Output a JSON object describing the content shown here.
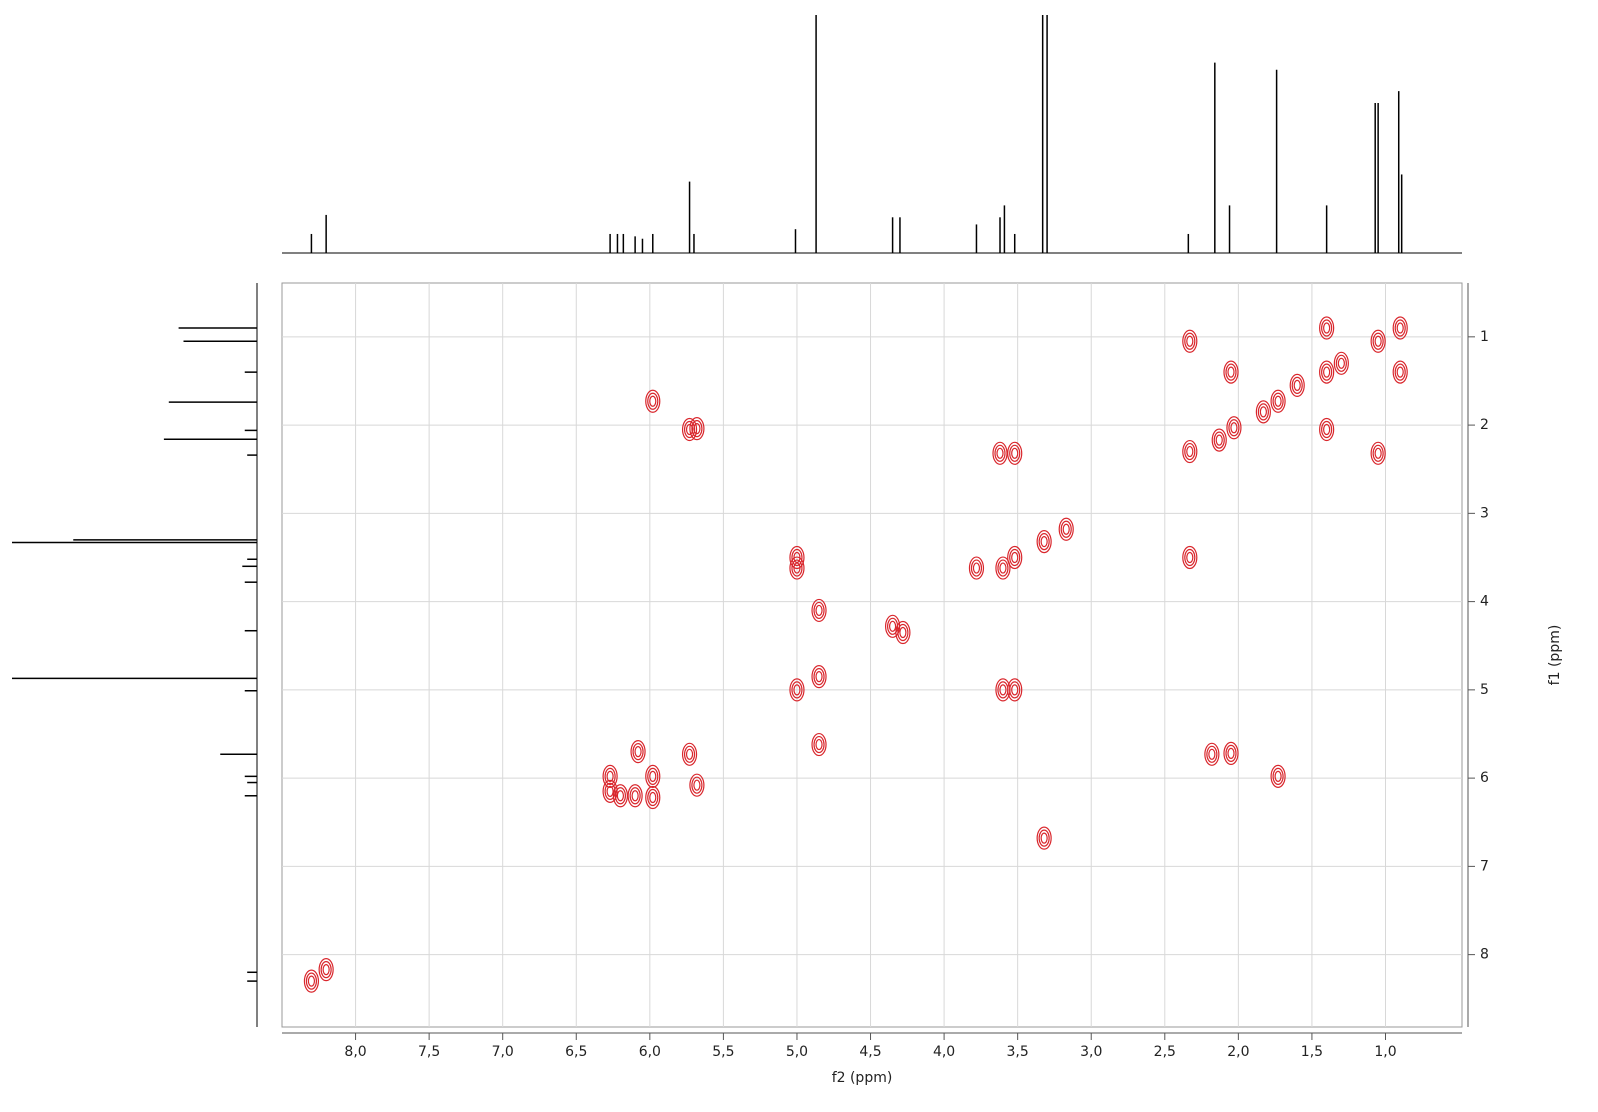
{
  "chart_data": {
    "type": "scatter",
    "x_label": "f2 (ppm)",
    "y_label": "f1 (ppm)",
    "xlim": [
      8.5,
      0.48
    ],
    "ylim": [
      0.39,
      8.82
    ],
    "xticks": [
      {
        "value": 8,
        "label": "8,0"
      },
      {
        "value": 7.5,
        "label": "7,5"
      },
      {
        "value": 7,
        "label": "7,0"
      },
      {
        "value": 6.5,
        "label": "6,5"
      },
      {
        "value": 6,
        "label": "6,0"
      },
      {
        "value": 5.5,
        "label": "5,5"
      },
      {
        "value": 5,
        "label": "5,0"
      },
      {
        "value": 4.5,
        "label": "4,5"
      },
      {
        "value": 4,
        "label": "4,0"
      },
      {
        "value": 3.5,
        "label": "3,5"
      },
      {
        "value": 3,
        "label": "3,0"
      },
      {
        "value": 2.5,
        "label": "2,5"
      },
      {
        "value": 2,
        "label": "2,0"
      },
      {
        "value": 1.5,
        "label": "1,5"
      },
      {
        "value": 1,
        "label": "1,0"
      }
    ],
    "yticks": [
      1,
      2,
      3,
      4,
      5,
      6,
      7,
      8
    ],
    "grid": true,
    "color": "#d9262c",
    "x": [
      8.3,
      8.2,
      6.27,
      6.27,
      6.2,
      6.1,
      6.08,
      5.98,
      5.98,
      5.98,
      5.73,
      5.73,
      5.68,
      5.68,
      5.0,
      5.0,
      5.0,
      4.85,
      4.85,
      4.85,
      4.35,
      4.28,
      3.78,
      3.6,
      3.62,
      3.52,
      3.52,
      3.6,
      3.52,
      3.32,
      3.17,
      3.32,
      2.33,
      2.33,
      2.33,
      2.13,
      2.05,
      2.03,
      2.18,
      2.05,
      1.73,
      1.73,
      1.4,
      1.4,
      1.4,
      1.05,
      1.05,
      0.9,
      0.9,
      1.3,
      1.6,
      1.83
    ],
    "y": [
      8.3,
      8.17,
      5.98,
      6.15,
      6.2,
      6.2,
      5.7,
      5.98,
      6.22,
      1.73,
      5.73,
      2.05,
      2.04,
      6.08,
      3.5,
      3.62,
      5.0,
      4.1,
      4.85,
      5.62,
      4.28,
      4.35,
      3.62,
      3.62,
      2.32,
      2.32,
      3.5,
      5.0,
      5.0,
      3.32,
      3.18,
      6.68,
      1.05,
      3.5,
      2.3,
      2.17,
      1.4,
      2.03,
      5.73,
      5.72,
      1.73,
      5.98,
      0.9,
      2.05,
      1.4,
      1.05,
      2.32,
      0.9,
      1.4,
      1.3,
      1.55,
      1.85
    ],
    "f2_projection": {
      "ppm": [
        8.3,
        8.2,
        6.27,
        6.22,
        6.18,
        6.1,
        6.05,
        5.98,
        5.73,
        5.7,
        5.01,
        4.87,
        4.35,
        4.3,
        3.78,
        3.62,
        3.59,
        3.52,
        3.33,
        3.3,
        2.34,
        2.16,
        2.06,
        1.74,
        1.4,
        1.07,
        1.05,
        0.91,
        0.89
      ],
      "intensity": [
        0.08,
        0.16,
        0.08,
        0.08,
        0.08,
        0.07,
        0.06,
        0.08,
        0.3,
        0.08,
        0.1,
        1.0,
        0.15,
        0.15,
        0.12,
        0.15,
        0.2,
        0.08,
        1.0,
        1.0,
        0.08,
        0.8,
        0.2,
        0.77,
        0.2,
        0.63,
        0.63,
        0.68,
        0.33
      ]
    },
    "f1_projection": {
      "ppm": [
        8.3,
        8.2,
        6.2,
        6.05,
        5.98,
        5.73,
        5.01,
        4.87,
        4.33,
        3.78,
        3.6,
        3.52,
        3.33,
        3.3,
        2.34,
        2.16,
        2.06,
        1.74,
        1.4,
        1.05,
        0.9
      ],
      "intensity": [
        0.04,
        0.04,
        0.05,
        0.04,
        0.05,
        0.15,
        0.05,
        1.0,
        0.05,
        0.05,
        0.06,
        0.04,
        1.0,
        0.75,
        0.04,
        0.38,
        0.05,
        0.36,
        0.05,
        0.3,
        0.32
      ]
    }
  }
}
